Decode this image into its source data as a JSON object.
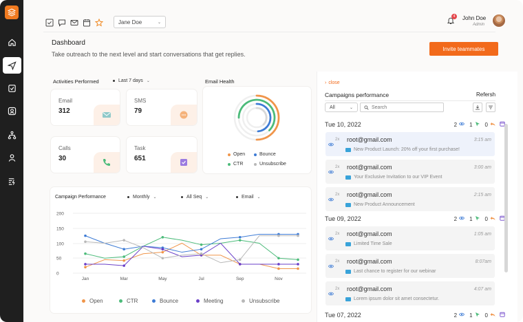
{
  "colors": {
    "accent": "#f26a1b",
    "sidebar": "#1f1f1f",
    "open": "#f0954a",
    "ctr": "#4cbb7a",
    "bounce": "#3d7bd5",
    "meeting": "#6a3fc8",
    "unsubscribe": "#b8b8b8"
  },
  "sidebar": {
    "icons": [
      "logo-icon",
      "home-icon",
      "send-icon",
      "checkbox-icon",
      "contact-icon",
      "network-icon",
      "user-icon",
      "sequence-icon"
    ]
  },
  "topbar": {
    "icons": [
      "checkbox-icon",
      "chat-icon",
      "mail-icon",
      "calendar-icon",
      "star-icon"
    ],
    "user_select": "Jane Doe",
    "notifications": "4",
    "user_name": "John Doe",
    "user_role": "Admin"
  },
  "header": {
    "title": "Dashboard",
    "subtitle": "Take outreach to the next level and start conversations that get replies.",
    "invite_label": "Invite teammates"
  },
  "activities": {
    "label": "Activities Performed",
    "range": "Last 7 days",
    "cards": [
      {
        "label": "Email",
        "value": "312",
        "icon": "email-icon"
      },
      {
        "label": "SMS",
        "value": "79",
        "icon": "sms-icon"
      },
      {
        "label": "Calls",
        "value": "30",
        "icon": "phone-icon"
      },
      {
        "label": "Task",
        "value": "651",
        "icon": "task-icon"
      }
    ]
  },
  "email_health": {
    "label": "Email Health",
    "legend": [
      "Open",
      "Bounce",
      "CTR",
      "Unsubscribe"
    ]
  },
  "campaign_chart": {
    "label": "Campaign Performance",
    "period": "Monthly",
    "sequence": "All Seq",
    "channel": "Email"
  },
  "chart_data": {
    "type": "line",
    "categories": [
      "Jan",
      "Feb",
      "Mar",
      "Apr",
      "May",
      "Jun",
      "Jul",
      "Aug",
      "Sep",
      "Oct",
      "Nov",
      "Dec"
    ],
    "x_tick_labels": [
      "Jan",
      "Mar",
      "May",
      "Jul",
      "Sep",
      "Nov"
    ],
    "ylim": [
      0,
      200
    ],
    "y_ticks": [
      "0",
      "25",
      "50",
      "75",
      "100",
      "150",
      "200"
    ],
    "legend_position": "bottom",
    "series": [
      {
        "name": "Open",
        "values": [
          20,
          45,
          42,
          65,
          70,
          100,
          60,
          60,
          30,
          30,
          15,
          15
        ]
      },
      {
        "name": "CTR",
        "values": [
          65,
          50,
          55,
          90,
          120,
          110,
          95,
          100,
          110,
          100,
          50,
          45
        ]
      },
      {
        "name": "Bounce",
        "values": [
          125,
          100,
          80,
          90,
          85,
          70,
          80,
          115,
          120,
          130,
          130,
          130
        ]
      },
      {
        "name": "Meeting",
        "values": [
          30,
          30,
          25,
          90,
          80,
          55,
          60,
          100,
          30,
          30,
          30,
          30
        ]
      },
      {
        "name": "Unsubscribe",
        "values": [
          105,
          100,
          110,
          85,
          50,
          60,
          65,
          35,
          45,
          125,
          125,
          125
        ]
      }
    ]
  },
  "panel": {
    "close_label": "close",
    "title": "Campaigns performance",
    "refresh_label": "Refersh",
    "filter_value": "All",
    "search_placeholder": "Search",
    "days": [
      {
        "date": "Tue 10, 2022",
        "views": "2",
        "clicks": "1",
        "replies": "0",
        "items": [
          {
            "from": "root@gmail.com",
            "count": "2x",
            "time": "3:15 am",
            "subject": "New Product Launch: 20% off your first purchase!",
            "highlight": true
          },
          {
            "from": "root@gmail.com",
            "count": "2x",
            "time": "3:00 am",
            "subject": "Your Exclusive Invitation to our VIP Event",
            "highlight": false
          },
          {
            "from": "root@gmail.com",
            "count": "2x",
            "time": "2:15 am",
            "subject": "New Product Announcement",
            "highlight": false
          }
        ]
      },
      {
        "date": "Tue 09, 2022",
        "views": "2",
        "clicks": "1",
        "replies": "0",
        "items": [
          {
            "from": "root@gmail.com",
            "count": "2x",
            "time": "1:05 am",
            "subject": "Limited Time Sale",
            "highlight": false
          },
          {
            "from": "root@gmail.com",
            "count": "2x",
            "time": "8:07am",
            "subject": "Last chance to register for our webinar",
            "highlight": false
          },
          {
            "from": "root@gmail.com",
            "count": "2x",
            "time": "4:07 am",
            "subject": "Lorem ipsum dolor sit amet consectetur.",
            "highlight": false
          }
        ]
      },
      {
        "date": "Tue 07, 2022",
        "views": "2",
        "clicks": "1",
        "replies": "0",
        "items": []
      }
    ]
  }
}
